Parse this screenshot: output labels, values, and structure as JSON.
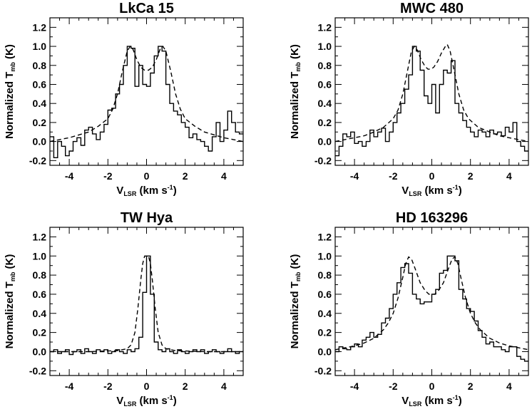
{
  "chart_data": [
    {
      "type": "line",
      "title": "LkCa 15",
      "xlabel": {
        "main": "V",
        "sub": "LSR",
        "tail": " (km s",
        "sup": "-1",
        "end": ")"
      },
      "ylabel": {
        "main": "Normalized T",
        "sub": "mb",
        "tail": " (K)"
      },
      "xlim": [
        -5,
        5
      ],
      "ylim": [
        -0.25,
        1.3
      ],
      "xticks": [
        -4,
        -2,
        0,
        2,
        4
      ],
      "xtick_labels": [
        "-4",
        "-2",
        "0",
        "2",
        "4"
      ],
      "yticks": [
        -0.2,
        0.0,
        0.2,
        0.4,
        0.6,
        0.8,
        1.0,
        1.2
      ],
      "ytick_labels": [
        "-0.2",
        "0.0",
        "0.2",
        "0.4",
        "0.6",
        "0.8",
        "1.0",
        "1.2"
      ],
      "series": [
        {
          "style": "histogram",
          "step": 0.2,
          "x": [
            -5.0,
            -4.8,
            -4.6,
            -4.4,
            -4.2,
            -4.0,
            -3.8,
            -3.6,
            -3.4,
            -3.2,
            -3.0,
            -2.8,
            -2.6,
            -2.4,
            -2.2,
            -2.0,
            -1.8,
            -1.6,
            -1.4,
            -1.2,
            -1.0,
            -0.8,
            -0.6,
            -0.4,
            -0.2,
            0.0,
            0.2,
            0.4,
            0.6,
            0.8,
            1.0,
            1.2,
            1.4,
            1.6,
            1.8,
            2.0,
            2.2,
            2.4,
            2.6,
            2.8,
            3.0,
            3.2,
            3.4,
            3.6,
            3.8,
            4.0,
            4.2,
            4.4,
            4.6,
            4.8
          ],
          "y": [
            0.05,
            -0.17,
            0.0,
            -0.05,
            -0.15,
            -0.1,
            0.0,
            0.04,
            -0.04,
            0.12,
            0.15,
            0.08,
            0.02,
            0.1,
            0.18,
            0.33,
            0.35,
            0.5,
            0.6,
            0.8,
            1.0,
            0.98,
            0.58,
            0.8,
            0.6,
            0.58,
            0.72,
            0.9,
            1.0,
            0.95,
            0.6,
            0.4,
            0.32,
            0.28,
            0.2,
            0.15,
            0.04,
            0.08,
            0.02,
            0.0,
            -0.05,
            -0.1,
            0.05,
            0.2,
            0.0,
            0.12,
            0.32,
            0.2,
            0.1,
            0.08
          ]
        },
        {
          "style": "dashed",
          "x": [
            -5.0,
            -4.5,
            -4.0,
            -3.5,
            -3.0,
            -2.5,
            -2.0,
            -1.75,
            -1.5,
            -1.25,
            -1.0,
            -0.85,
            -0.7,
            -0.5,
            -0.3,
            -0.1,
            0.0,
            0.1,
            0.3,
            0.5,
            0.7,
            0.85,
            1.0,
            1.25,
            1.5,
            1.75,
            2.0,
            2.5,
            3.0,
            3.5,
            4.0,
            4.5,
            5.0
          ],
          "y": [
            0.0,
            0.02,
            0.04,
            0.07,
            0.1,
            0.16,
            0.24,
            0.34,
            0.5,
            0.74,
            0.95,
            1.0,
            0.97,
            0.86,
            0.78,
            0.75,
            0.75,
            0.75,
            0.78,
            0.86,
            0.97,
            1.0,
            0.95,
            0.74,
            0.5,
            0.34,
            0.24,
            0.16,
            0.1,
            0.07,
            0.04,
            0.02,
            0.0
          ]
        }
      ]
    },
    {
      "type": "line",
      "title": "MWC 480",
      "xlabel": {
        "main": "V",
        "sub": "LSR",
        "tail": " (km s",
        "sup": "-1",
        "end": ")"
      },
      "ylabel": {
        "main": "Normalized T",
        "sub": "mb",
        "tail": " (K)"
      },
      "xlim": [
        -5,
        5
      ],
      "ylim": [
        -0.25,
        1.3
      ],
      "xticks": [
        -4,
        -2,
        0,
        2,
        4
      ],
      "xtick_labels": [
        "-4",
        "-2",
        "0",
        "2",
        "4"
      ],
      "yticks": [
        -0.2,
        0.0,
        0.2,
        0.4,
        0.6,
        0.8,
        1.0,
        1.2
      ],
      "ytick_labels": [
        "-0.2",
        "0.0",
        "0.2",
        "0.4",
        "0.6",
        "0.8",
        "1.0",
        "1.2"
      ],
      "series": [
        {
          "style": "histogram",
          "step": 0.2,
          "x": [
            -5.0,
            -4.8,
            -4.6,
            -4.4,
            -4.2,
            -4.0,
            -3.8,
            -3.6,
            -3.4,
            -3.2,
            -3.0,
            -2.8,
            -2.6,
            -2.4,
            -2.2,
            -2.0,
            -1.8,
            -1.6,
            -1.4,
            -1.2,
            -1.0,
            -0.8,
            -0.6,
            -0.4,
            -0.2,
            0.0,
            0.2,
            0.4,
            0.6,
            0.8,
            1.0,
            1.2,
            1.4,
            1.6,
            1.8,
            2.0,
            2.2,
            2.4,
            2.6,
            2.8,
            3.0,
            3.2,
            3.4,
            3.6,
            3.8,
            4.0,
            4.2,
            4.4,
            4.6,
            4.8
          ],
          "y": [
            -0.15,
            -0.05,
            0.08,
            0.05,
            0.1,
            -0.02,
            0.0,
            -0.05,
            0.0,
            0.12,
            0.05,
            0.1,
            0.14,
            0.0,
            0.1,
            0.2,
            0.3,
            0.4,
            0.55,
            0.7,
            1.0,
            0.95,
            0.75,
            0.48,
            0.4,
            0.6,
            0.3,
            0.6,
            0.75,
            0.72,
            0.85,
            0.4,
            0.3,
            0.22,
            0.15,
            0.1,
            0.05,
            0.12,
            0.1,
            0.05,
            0.12,
            0.08,
            0.1,
            0.06,
            0.15,
            0.1,
            0.2,
            0.0,
            -0.05,
            -0.1
          ]
        },
        {
          "style": "dashed",
          "x": [
            -5.0,
            -4.5,
            -4.0,
            -3.5,
            -3.0,
            -2.5,
            -2.0,
            -1.75,
            -1.5,
            -1.25,
            -1.05,
            -0.9,
            -0.75,
            -0.55,
            -0.35,
            -0.2,
            -0.05,
            0.1,
            0.3,
            0.5,
            0.7,
            0.8,
            0.95,
            1.15,
            1.4,
            1.65,
            1.9,
            2.4,
            3.0,
            3.5,
            4.0,
            4.5,
            5.0
          ],
          "y": [
            0.0,
            0.02,
            0.04,
            0.06,
            0.1,
            0.15,
            0.24,
            0.33,
            0.5,
            0.75,
            0.95,
            1.0,
            0.96,
            0.86,
            0.79,
            0.76,
            0.76,
            0.78,
            0.84,
            0.93,
            1.0,
            1.02,
            0.95,
            0.75,
            0.5,
            0.33,
            0.24,
            0.15,
            0.1,
            0.06,
            0.04,
            0.02,
            0.0
          ]
        }
      ]
    },
    {
      "type": "line",
      "title": "TW Hya",
      "xlabel": {
        "main": "V",
        "sub": "LSR",
        "tail": " (km s",
        "sup": "-1",
        "end": ")"
      },
      "ylabel": {
        "main": "Normalized T",
        "sub": "mb",
        "tail": " (K)"
      },
      "xlim": [
        -5,
        5
      ],
      "ylim": [
        -0.25,
        1.3
      ],
      "xticks": [
        -4,
        -2,
        0,
        2,
        4
      ],
      "xtick_labels": [
        "-4",
        "-2",
        "0",
        "2",
        "4"
      ],
      "yticks": [
        -0.2,
        0.0,
        0.2,
        0.4,
        0.6,
        0.8,
        1.0,
        1.2
      ],
      "ytick_labels": [
        "-0.2",
        "0.0",
        "0.2",
        "0.4",
        "0.6",
        "0.8",
        "1.0",
        "1.2"
      ],
      "series": [
        {
          "style": "histogram",
          "step": 0.2,
          "x": [
            -5.0,
            -4.8,
            -4.6,
            -4.4,
            -4.2,
            -4.0,
            -3.8,
            -3.6,
            -3.4,
            -3.2,
            -3.0,
            -2.8,
            -2.6,
            -2.4,
            -2.2,
            -2.0,
            -1.8,
            -1.6,
            -1.4,
            -1.2,
            -1.0,
            -0.8,
            -0.6,
            -0.4,
            -0.2,
            0.0,
            0.2,
            0.4,
            0.6,
            0.8,
            1.0,
            1.2,
            1.4,
            1.6,
            1.8,
            2.0,
            2.2,
            2.4,
            2.6,
            2.8,
            3.0,
            3.2,
            3.4,
            3.6,
            3.8,
            4.0,
            4.2,
            4.4,
            4.6,
            4.8
          ],
          "y": [
            0.0,
            0.02,
            -0.02,
            0.0,
            0.02,
            -0.03,
            0.0,
            0.02,
            -0.02,
            0.03,
            0.0,
            -0.02,
            0.02,
            0.0,
            0.02,
            -0.02,
            0.0,
            0.02,
            0.0,
            -0.02,
            0.02,
            0.0,
            0.03,
            0.15,
            0.62,
            1.0,
            0.6,
            0.1,
            0.02,
            0.0,
            0.03,
            0.0,
            -0.02,
            0.02,
            0.0,
            -0.02,
            0.0,
            0.02,
            0.0,
            0.02,
            -0.02,
            0.0,
            0.02,
            0.0,
            -0.02,
            0.0,
            0.03,
            0.0,
            -0.02,
            0.0
          ]
        },
        {
          "style": "dashed",
          "x": [
            -5.0,
            -3.0,
            -1.5,
            -1.0,
            -0.8,
            -0.6,
            -0.45,
            -0.3,
            -0.2,
            -0.1,
            0.0,
            0.1,
            0.2,
            0.3,
            0.45,
            0.6,
            0.8,
            1.0,
            1.5,
            3.0,
            5.0
          ],
          "y": [
            0.0,
            0.0,
            0.01,
            0.03,
            0.07,
            0.2,
            0.45,
            0.75,
            0.92,
            1.0,
            1.0,
            1.0,
            0.92,
            0.75,
            0.45,
            0.2,
            0.07,
            0.03,
            0.01,
            0.0,
            0.0
          ]
        }
      ]
    },
    {
      "type": "line",
      "title": "HD 163296",
      "xlabel": {
        "main": "V",
        "sub": "LSR",
        "tail": " (km s",
        "sup": "-1",
        "end": ")"
      },
      "ylabel": {
        "main": "Normalized T",
        "sub": "mb",
        "tail": " (K)"
      },
      "xlim": [
        -5,
        5
      ],
      "ylim": [
        -0.25,
        1.3
      ],
      "xticks": [
        -4,
        -2,
        0,
        2,
        4
      ],
      "xtick_labels": [
        "-4",
        "-2",
        "0",
        "2",
        "4"
      ],
      "yticks": [
        -0.2,
        0.0,
        0.2,
        0.4,
        0.6,
        0.8,
        1.0,
        1.2
      ],
      "ytick_labels": [
        "-0.2",
        "0.0",
        "0.2",
        "0.4",
        "0.6",
        "0.8",
        "1.0",
        "1.2"
      ],
      "series": [
        {
          "style": "histogram",
          "step": 0.2,
          "x": [
            -5.0,
            -4.8,
            -4.6,
            -4.4,
            -4.2,
            -4.0,
            -3.8,
            -3.6,
            -3.4,
            -3.2,
            -3.0,
            -2.8,
            -2.6,
            -2.4,
            -2.2,
            -2.0,
            -1.8,
            -1.6,
            -1.4,
            -1.2,
            -1.0,
            -0.8,
            -0.6,
            -0.4,
            -0.2,
            0.0,
            0.2,
            0.4,
            0.6,
            0.8,
            1.0,
            1.2,
            1.4,
            1.6,
            1.8,
            2.0,
            2.2,
            2.4,
            2.6,
            2.8,
            3.0,
            3.2,
            3.4,
            3.6,
            3.8,
            4.0,
            4.2,
            4.4,
            4.6,
            4.8
          ],
          "y": [
            0.0,
            0.05,
            0.03,
            0.02,
            0.05,
            0.08,
            0.05,
            0.12,
            0.15,
            0.2,
            0.15,
            0.18,
            0.3,
            0.35,
            0.45,
            0.6,
            0.72,
            0.88,
            0.92,
            0.82,
            0.6,
            0.55,
            0.5,
            0.52,
            0.52,
            0.6,
            0.65,
            0.82,
            0.85,
            1.0,
            1.0,
            0.95,
            0.65,
            0.55,
            0.45,
            0.42,
            0.32,
            0.22,
            0.15,
            0.08,
            0.1,
            0.05,
            0.05,
            0.02,
            0.0,
            0.05,
            0.05,
            -0.05,
            -0.08,
            -0.1
          ]
        },
        {
          "style": "dashed",
          "x": [
            -5.0,
            -4.5,
            -4.0,
            -3.5,
            -3.0,
            -2.5,
            -2.25,
            -2.0,
            -1.75,
            -1.5,
            -1.35,
            -1.2,
            -1.05,
            -0.85,
            -0.6,
            -0.35,
            -0.15,
            0.0,
            0.15,
            0.35,
            0.6,
            0.85,
            1.05,
            1.2,
            1.35,
            1.5,
            1.75,
            2.0,
            2.25,
            2.5,
            3.0,
            3.5,
            4.0,
            4.5,
            5.0
          ],
          "y": [
            0.02,
            0.04,
            0.06,
            0.09,
            0.14,
            0.23,
            0.3,
            0.4,
            0.56,
            0.78,
            0.92,
            0.99,
            0.97,
            0.86,
            0.72,
            0.64,
            0.6,
            0.6,
            0.6,
            0.64,
            0.72,
            0.86,
            0.97,
            0.99,
            0.92,
            0.78,
            0.56,
            0.4,
            0.3,
            0.23,
            0.14,
            0.09,
            0.06,
            0.04,
            0.02
          ]
        }
      ]
    }
  ]
}
